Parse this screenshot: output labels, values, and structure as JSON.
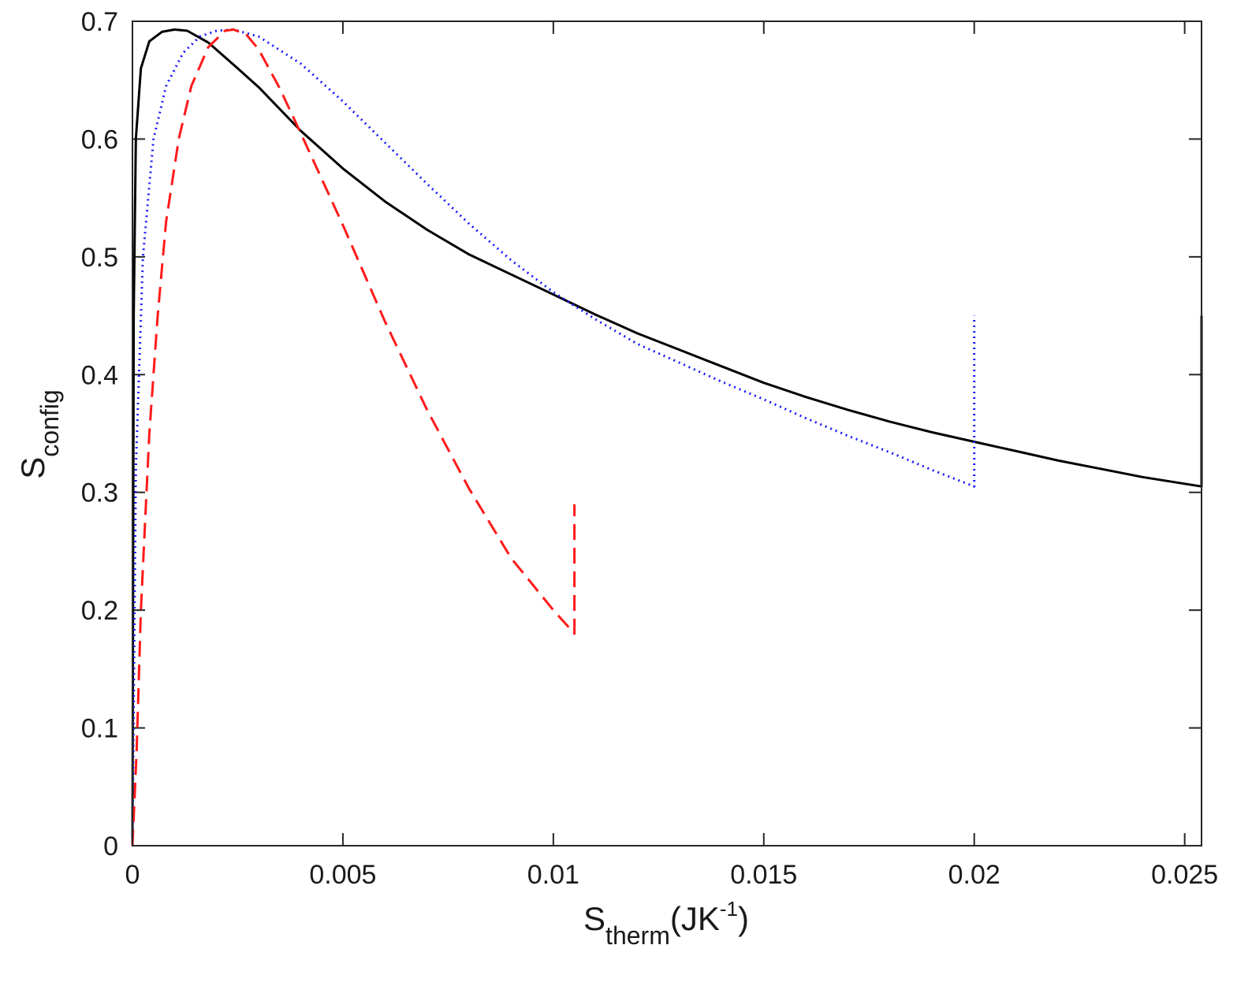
{
  "chart_data": {
    "type": "line",
    "title": "",
    "xlabel": {
      "main": "S",
      "sub": "therm",
      "unit_prefix": "(JK",
      "unit_sup": "-1",
      "unit_suffix": ")"
    },
    "ylabel": {
      "main": "S",
      "sub": "config"
    },
    "xlim": [
      0,
      0.0254
    ],
    "ylim": [
      0,
      0.7
    ],
    "x_ticks": [
      {
        "value": 0,
        "label": "0"
      },
      {
        "value": 0.005,
        "label": "0.005"
      },
      {
        "value": 0.01,
        "label": "0.01"
      },
      {
        "value": 0.015,
        "label": "0.015"
      },
      {
        "value": 0.02,
        "label": "0.02"
      },
      {
        "value": 0.025,
        "label": "0.025"
      }
    ],
    "y_ticks": [
      {
        "value": 0,
        "label": "0"
      },
      {
        "value": 0.1,
        "label": "0.1"
      },
      {
        "value": 0.2,
        "label": "0.2"
      },
      {
        "value": 0.3,
        "label": "0.3"
      },
      {
        "value": 0.4,
        "label": "0.4"
      },
      {
        "value": 0.5,
        "label": "0.5"
      },
      {
        "value": 0.6,
        "label": "0.6"
      },
      {
        "value": 0.7,
        "label": "0.7"
      }
    ],
    "grid": false,
    "legend": "none",
    "series": [
      {
        "color": "#000000",
        "style": "solid",
        "points": [
          [
            0,
            0
          ],
          [
            3e-05,
            0.45
          ],
          [
            8e-05,
            0.6
          ],
          [
            0.0002,
            0.66
          ],
          [
            0.0004,
            0.683
          ],
          [
            0.0007,
            0.691
          ],
          [
            0.001,
            0.693
          ],
          [
            0.0013,
            0.692
          ],
          [
            0.0018,
            0.682
          ],
          [
            0.0025,
            0.66
          ],
          [
            0.003,
            0.644
          ],
          [
            0.004,
            0.607
          ],
          [
            0.005,
            0.575
          ],
          [
            0.006,
            0.547
          ],
          [
            0.007,
            0.523
          ],
          [
            0.008,
            0.502
          ],
          [
            0.009,
            0.485
          ],
          [
            0.01,
            0.468
          ],
          [
            0.011,
            0.451
          ],
          [
            0.012,
            0.435
          ],
          [
            0.013,
            0.421
          ],
          [
            0.014,
            0.407
          ],
          [
            0.015,
            0.393
          ],
          [
            0.016,
            0.381
          ],
          [
            0.017,
            0.37
          ],
          [
            0.018,
            0.36
          ],
          [
            0.019,
            0.351
          ],
          [
            0.02,
            0.343
          ],
          [
            0.021,
            0.335
          ],
          [
            0.022,
            0.327
          ],
          [
            0.023,
            0.32
          ],
          [
            0.024,
            0.313
          ],
          [
            0.0254,
            0.305
          ],
          [
            0.0254,
            0.45
          ]
        ]
      },
      {
        "color": "#1a1aff",
        "style": "dotted",
        "points": [
          [
            0,
            0
          ],
          [
            8e-05,
            0.32
          ],
          [
            0.00025,
            0.5
          ],
          [
            0.0005,
            0.6
          ],
          [
            0.0008,
            0.645
          ],
          [
            0.0012,
            0.673
          ],
          [
            0.0016,
            0.687
          ],
          [
            0.002,
            0.692
          ],
          [
            0.0024,
            0.693
          ],
          [
            0.003,
            0.687
          ],
          [
            0.004,
            0.664
          ],
          [
            0.005,
            0.632
          ],
          [
            0.006,
            0.597
          ],
          [
            0.007,
            0.562
          ],
          [
            0.008,
            0.528
          ],
          [
            0.009,
            0.497
          ],
          [
            0.01,
            0.47
          ],
          [
            0.011,
            0.447
          ],
          [
            0.012,
            0.426
          ],
          [
            0.013,
            0.41
          ],
          [
            0.014,
            0.394
          ],
          [
            0.015,
            0.379
          ],
          [
            0.016,
            0.363
          ],
          [
            0.017,
            0.348
          ],
          [
            0.018,
            0.334
          ],
          [
            0.019,
            0.319
          ],
          [
            0.02,
            0.305
          ],
          [
            0.02,
            0.45
          ]
        ]
      },
      {
        "color": "#ff1a1a",
        "style": "dashed",
        "points": [
          [
            0,
            0
          ],
          [
            0.0001,
            0.08
          ],
          [
            0.0002,
            0.2
          ],
          [
            0.0004,
            0.35
          ],
          [
            0.0006,
            0.45
          ],
          [
            0.0008,
            0.53
          ],
          [
            0.0011,
            0.6
          ],
          [
            0.0014,
            0.645
          ],
          [
            0.0018,
            0.678
          ],
          [
            0.0022,
            0.692
          ],
          [
            0.0024,
            0.693
          ],
          [
            0.0027,
            0.689
          ],
          [
            0.003,
            0.676
          ],
          [
            0.0035,
            0.643
          ],
          [
            0.004,
            0.605
          ],
          [
            0.005,
            0.527
          ],
          [
            0.006,
            0.445
          ],
          [
            0.007,
            0.37
          ],
          [
            0.008,
            0.303
          ],
          [
            0.009,
            0.244
          ],
          [
            0.01,
            0.2
          ],
          [
            0.0105,
            0.18
          ],
          [
            0.0105,
            0.29
          ]
        ]
      }
    ]
  }
}
